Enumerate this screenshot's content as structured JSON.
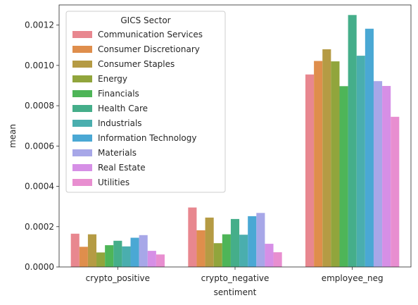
{
  "chart_data": {
    "type": "bar",
    "xlabel": "sentiment",
    "ylabel": "mean",
    "categories": [
      "crypto_positive",
      "crypto_negative",
      "employee_neg"
    ],
    "ylim": [
      0,
      0.0013
    ],
    "yticks": [
      "0.0000",
      "0.0002",
      "0.0004",
      "0.0006",
      "0.0008",
      "0.0010",
      "0.0012"
    ],
    "ytick_values": [
      0,
      0.0002,
      0.0004,
      0.0006,
      0.0008,
      0.001,
      0.0012
    ],
    "grid": false,
    "legend": {
      "title": "GICS Sector",
      "placement": "top-left"
    },
    "series": [
      {
        "name": "Communication Services",
        "color": "#e8878f",
        "values": [
          0.000165,
          0.000295,
          0.000955
        ]
      },
      {
        "name": "Consumer Discretionary",
        "color": "#df8e4c",
        "values": [
          0.0001,
          0.000182,
          0.001022
        ]
      },
      {
        "name": "Consumer Staples",
        "color": "#b59b44",
        "values": [
          0.000162,
          0.000245,
          0.00108
        ]
      },
      {
        "name": "Energy",
        "color": "#91a53c",
        "values": [
          7.2e-05,
          0.000118,
          0.00102
        ]
      },
      {
        "name": "Financials",
        "color": "#4eb558",
        "values": [
          0.000108,
          0.000162,
          0.000897
        ]
      },
      {
        "name": "Health Care",
        "color": "#45ae8a",
        "values": [
          0.00013,
          0.000238,
          0.00125
        ]
      },
      {
        "name": "Industrials",
        "color": "#4aaeae",
        "values": [
          0.000102,
          0.00016,
          0.001048
        ]
      },
      {
        "name": "Information Technology",
        "color": "#4aa8d4",
        "values": [
          0.000145,
          0.000252,
          0.001182
        ]
      },
      {
        "name": "Materials",
        "color": "#a7a7e8",
        "values": [
          0.000158,
          0.000268,
          0.000922
        ]
      },
      {
        "name": "Real Estate",
        "color": "#d68fe6",
        "values": [
          8e-05,
          0.000115,
          0.000898
        ]
      },
      {
        "name": "Utilities",
        "color": "#e88ed0",
        "values": [
          6.2e-05,
          7.3e-05,
          0.000745
        ]
      }
    ]
  }
}
